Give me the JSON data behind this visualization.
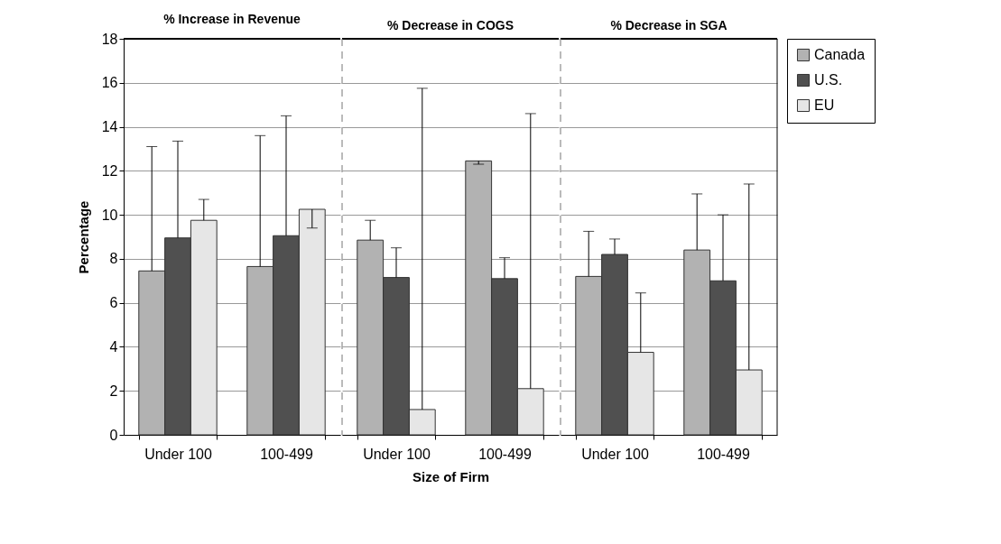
{
  "chart_data": [
    {
      "type": "bar",
      "title": "% Increase in Revenue",
      "ylabel": "Percentage",
      "categories": [
        "Under 100",
        "100-499"
      ],
      "ylim": [
        0,
        18
      ],
      "yticks": [
        0,
        2,
        4,
        6,
        8,
        10,
        12,
        14,
        16,
        18
      ],
      "grid": "y",
      "legend": "right",
      "series": [
        {
          "name": "Canada",
          "color": "#b2b2b2",
          "values": [
            7.45,
            7.65
          ],
          "errors": [
            [
              7.45,
              13.1
            ],
            [
              7.65,
              13.6
            ]
          ]
        },
        {
          "name": "U.S.",
          "color": "#505050",
          "values": [
            8.95,
            9.05
          ],
          "errors": [
            [
              8.95,
              13.35
            ],
            [
              9.05,
              14.5
            ]
          ]
        },
        {
          "name": "EU",
          "color": "#e6e6e6",
          "values": [
            9.75,
            10.25
          ],
          "errors": [
            [
              9.75,
              10.7
            ],
            [
              9.4,
              10.25
            ]
          ]
        }
      ]
    },
    {
      "type": "bar",
      "title": "% Decrease in COGS",
      "xlabel": "Size of Firm",
      "categories": [
        "Under 100",
        "100-499"
      ],
      "ylim": [
        0,
        18
      ],
      "yticks": [
        0,
        2,
        4,
        6,
        8,
        10,
        12,
        14,
        16,
        18
      ],
      "grid": "y",
      "legend": "right",
      "tick_labels": "x",
      "series": [
        {
          "name": "Canada",
          "color": "#b2b2b2",
          "values": [
            8.85,
            12.45
          ],
          "errors": [
            [
              8.85,
              9.75
            ],
            [
              12.3,
              12.45
            ]
          ]
        },
        {
          "name": "U.S.",
          "color": "#505050",
          "values": [
            7.15,
            7.1
          ],
          "errors": [
            [
              7.15,
              8.5
            ],
            [
              7.1,
              8.05
            ]
          ]
        },
        {
          "name": "EU",
          "color": "#e6e6e6",
          "values": [
            1.15,
            2.1
          ],
          "errors": [
            [
              1.15,
              15.75
            ],
            [
              2.1,
              14.6
            ]
          ]
        }
      ]
    },
    {
      "type": "bar",
      "title": "% Decrease in SGA",
      "categories": [
        "Under 100",
        "100-499"
      ],
      "ylim": [
        0,
        18
      ],
      "yticks": [
        0,
        2,
        4,
        6,
        8,
        10,
        12,
        14,
        16,
        18
      ],
      "grid": "y",
      "legend": "right",
      "tick_labels": "x",
      "series": [
        {
          "name": "Canada",
          "color": "#b2b2b2",
          "values": [
            7.2,
            8.4
          ],
          "errors": [
            [
              7.2,
              9.25
            ],
            [
              8.4,
              10.95
            ]
          ]
        },
        {
          "name": "U.S.",
          "color": "#505050",
          "values": [
            8.2,
            7.0
          ],
          "errors": [
            [
              8.2,
              8.9
            ],
            [
              7.0,
              10.0
            ]
          ]
        },
        {
          "name": "EU",
          "color": "#e6e6e6",
          "values": [
            3.75,
            2.95
          ],
          "errors": [
            [
              3.75,
              6.45
            ],
            [
              2.95,
              11.4
            ]
          ]
        }
      ]
    }
  ]
}
